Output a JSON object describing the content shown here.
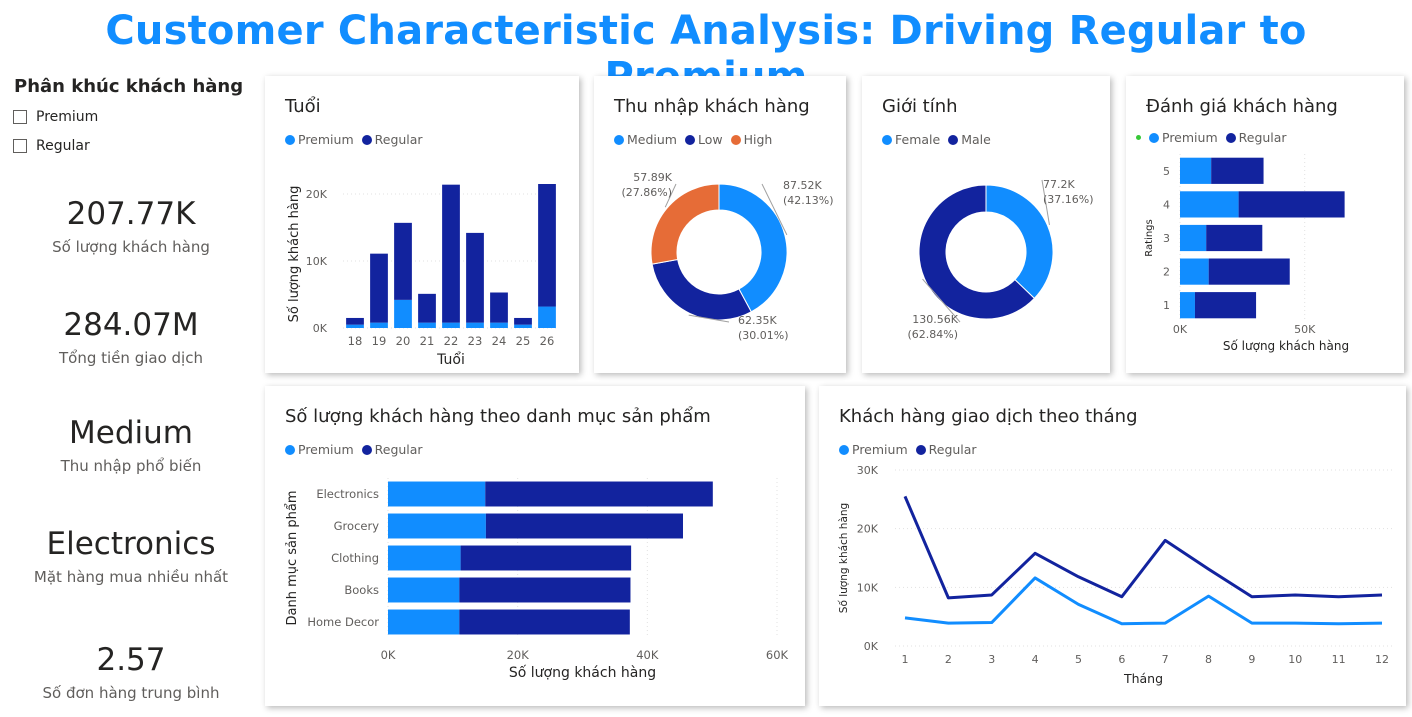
{
  "page": {
    "title": "Customer Characteristic Analysis: Driving Regular to Premium"
  },
  "slicer": {
    "title": "Phân khúc khách hàng",
    "options": [
      "Premium",
      "Regular"
    ]
  },
  "kpis": [
    {
      "value": "207.77K",
      "label": "Số lượng khách hàng"
    },
    {
      "value": "284.07M",
      "label": "Tổng tiền giao dịch"
    },
    {
      "value": "Medium",
      "label": "Thu nhập phổ biến"
    },
    {
      "value": "Electronics",
      "label": "Mặt hàng mua nhiều nhất"
    },
    {
      "value": "2.57",
      "label": "Số đơn hàng trung bình"
    }
  ],
  "colors": {
    "premium": "#118DFF",
    "regular": "#12239E",
    "high": "#E66C37",
    "title": "#118DFF"
  },
  "chart_data": [
    {
      "type": "bar",
      "stacked": true,
      "orientation": "vertical",
      "title": "Tuổi",
      "xlabel": "Tuổi",
      "ylabel": "Số lượng khách hàng",
      "categories": [
        "18",
        "19",
        "20",
        "21",
        "22",
        "23",
        "24",
        "25",
        "26"
      ],
      "series": [
        {
          "name": "Premium",
          "values": [
            500,
            800,
            4200,
            800,
            800,
            800,
            800,
            500,
            3200
          ]
        },
        {
          "name": "Regular",
          "values": [
            1000,
            10300,
            11500,
            4300,
            20600,
            13400,
            4500,
            1000,
            18300
          ]
        }
      ],
      "ylim": [
        0,
        21500
      ],
      "yticks": [
        "0K",
        "10K",
        "20K"
      ],
      "legend": "top-left"
    },
    {
      "type": "pie",
      "donut": true,
      "title": "Thu nhập khách hàng",
      "slices": [
        {
          "name": "Medium",
          "value": 87520,
          "label": "87.52K",
          "pct": "(42.13%)"
        },
        {
          "name": "Low",
          "value": 62350,
          "label": "62.35K",
          "pct": "(30.01%)"
        },
        {
          "name": "High",
          "value": 57890,
          "label": "57.89K",
          "pct": "(27.86%)"
        }
      ],
      "legend": "top-left"
    },
    {
      "type": "pie",
      "donut": true,
      "title": "Giới tính",
      "slices": [
        {
          "name": "Female",
          "value": 77200,
          "label": "77.2K",
          "pct": "(37.16%)"
        },
        {
          "name": "Male",
          "value": 130560,
          "label": "130.56K",
          "pct": "(62.84%)"
        }
      ],
      "legend": "top-left"
    },
    {
      "type": "bar",
      "stacked": true,
      "orientation": "horizontal",
      "title": "Đánh giá khách hàng",
      "xlabel": "Số lượng khách hàng",
      "ylabel": "Ratings",
      "categories": [
        "5",
        "4",
        "3",
        "2",
        "1"
      ],
      "series": [
        {
          "name": "Premium",
          "values": [
            12500,
            23500,
            10500,
            11500,
            6000
          ]
        },
        {
          "name": "Regular",
          "values": [
            21000,
            42500,
            22500,
            32500,
            24500
          ]
        }
      ],
      "xlim": [
        0,
        85000
      ],
      "xticks": [
        "0K",
        "50K"
      ],
      "legend": "top-left"
    },
    {
      "type": "bar",
      "stacked": true,
      "orientation": "horizontal",
      "title": "Số lượng khách hàng theo danh mục sản phẩm",
      "xlabel": "Số lượng khách hàng",
      "ylabel": "Danh mục sản phẩm",
      "categories": [
        "Electronics",
        "Grocery",
        "Clothing",
        "Books",
        "Home Decor"
      ],
      "series": [
        {
          "name": "Premium",
          "values": [
            15000,
            15100,
            11200,
            11000,
            11000
          ]
        },
        {
          "name": "Regular",
          "values": [
            35100,
            30400,
            26300,
            26400,
            26300
          ]
        }
      ],
      "xlim": [
        0,
        60000
      ],
      "xticks": [
        "0K",
        "20K",
        "40K",
        "60K"
      ],
      "legend": "top-left"
    },
    {
      "type": "line",
      "title": "Khách hàng giao dịch theo tháng",
      "xlabel": "Tháng",
      "ylabel": "Số lượng khách hàng",
      "x": [
        "1",
        "2",
        "3",
        "4",
        "5",
        "6",
        "7",
        "8",
        "9",
        "10",
        "11",
        "12"
      ],
      "series": [
        {
          "name": "Premium",
          "values": [
            4800,
            3900,
            4000,
            11600,
            7100,
            3800,
            3900,
            8500,
            3900,
            3900,
            3800,
            3900
          ]
        },
        {
          "name": "Regular",
          "values": [
            25500,
            8200,
            8700,
            15800,
            11800,
            8400,
            18000,
            13100,
            8400,
            8700,
            8400,
            8700
          ]
        }
      ],
      "ylim": [
        0,
        30000
      ],
      "yticks": [
        "0K",
        "10K",
        "20K",
        "30K"
      ],
      "legend": "top-left"
    }
  ]
}
